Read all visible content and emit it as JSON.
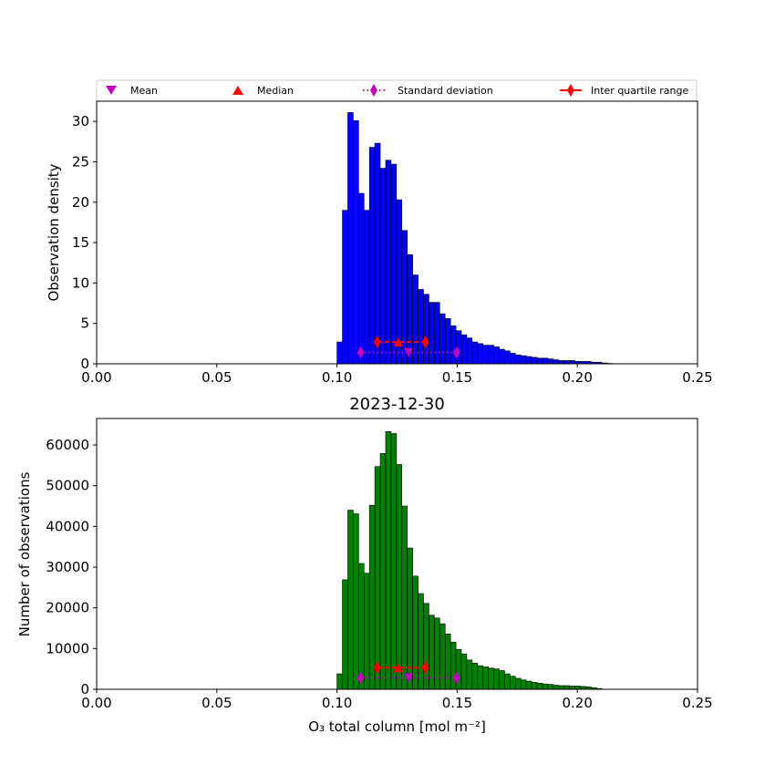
{
  "figure": {
    "legend": {
      "placement": "above-top-panel",
      "entries": [
        {
          "label": "Mean",
          "marker": "triangle-down",
          "color": "#bf00bf",
          "line": "none"
        },
        {
          "label": "Median",
          "marker": "triangle-up",
          "color": "#ff0000",
          "line": "none"
        },
        {
          "label": "Standard deviation",
          "marker": "diamond",
          "color": "#bf00bf",
          "line": "dotted"
        },
        {
          "label": "Inter quartile range",
          "marker": "diamond",
          "color": "#ff0000",
          "line": "solid"
        }
      ]
    }
  },
  "chart_data": [
    {
      "type": "bar",
      "panel": "top",
      "title": "",
      "xlabel": "",
      "ylabel": "Observation density",
      "bar_color": "#0000ff",
      "edge_color": "#000000",
      "xlim": [
        0.0,
        0.25
      ],
      "ylim": [
        0,
        32.5
      ],
      "xticks": [
        "0.00",
        "0.05",
        "0.10",
        "0.15",
        "0.20",
        "0.25"
      ],
      "yticks": [
        "0",
        "5",
        "10",
        "15",
        "20",
        "25",
        "30"
      ],
      "ytick_values": [
        0,
        5,
        10,
        15,
        20,
        25,
        30
      ],
      "bin_start": 0.1,
      "bin_width": 0.00225,
      "values": [
        2.7,
        19.0,
        31.1,
        30.1,
        21.1,
        19.0,
        26.8,
        27.3,
        24.2,
        25.2,
        24.7,
        20.3,
        16.5,
        13.5,
        11.0,
        9.2,
        8.6,
        7.6,
        7.6,
        6.2,
        5.6,
        4.7,
        4.1,
        3.6,
        3.2,
        2.7,
        2.5,
        2.3,
        2.3,
        2.1,
        1.8,
        1.6,
        1.3,
        1.1,
        1.0,
        0.9,
        0.8,
        0.7,
        0.7,
        0.6,
        0.5,
        0.4,
        0.4,
        0.4,
        0.3,
        0.3,
        0.3,
        0.2,
        0.2,
        0.1,
        0.05
      ],
      "statistics": {
        "mean": {
          "x": 0.1298,
          "y": 1.4
        },
        "median": {
          "x": 0.1255,
          "y": 2.7
        },
        "standard_deviation": {
          "x_range": [
            0.1098,
            0.1498
          ],
          "y": 1.4
        },
        "inter_quartile_range": {
          "x_range": [
            0.1168,
            0.1368
          ],
          "y": 2.7
        }
      }
    },
    {
      "type": "bar",
      "panel": "bottom",
      "title": "2023-12-30",
      "xlabel": "O₃ total column [mol m⁻²]",
      "ylabel": "Number of observations",
      "bar_color": "#008000",
      "edge_color": "#000000",
      "xlim": [
        0.0,
        0.25
      ],
      "ylim": [
        0,
        66500
      ],
      "xticks": [
        "0.00",
        "0.05",
        "0.10",
        "0.15",
        "0.20",
        "0.25"
      ],
      "yticks": [
        "0",
        "10000",
        "20000",
        "30000",
        "40000",
        "50000",
        "60000"
      ],
      "ytick_values": [
        0,
        10000,
        20000,
        30000,
        40000,
        50000,
        60000
      ],
      "bin_start": 0.1,
      "bin_width": 0.00225,
      "values": [
        3800,
        26900,
        44000,
        43100,
        30900,
        28500,
        45200,
        54700,
        57900,
        63300,
        62800,
        55200,
        45000,
        34700,
        27800,
        23500,
        21100,
        18200,
        17500,
        16100,
        13600,
        11600,
        9800,
        8700,
        7200,
        6400,
        5800,
        5500,
        5200,
        5000,
        4600,
        3800,
        3200,
        2700,
        2300,
        2000,
        1700,
        1500,
        1300,
        1200,
        1000,
        900,
        900,
        800,
        800,
        700,
        600,
        400,
        200
      ],
      "statistics": {
        "mean": {
          "x": 0.1298,
          "y": 2800
        },
        "median": {
          "x": 0.1255,
          "y": 5300
        },
        "standard_deviation": {
          "x_range": [
            0.1098,
            0.1498
          ],
          "y": 2800
        },
        "inter_quartile_range": {
          "x_range": [
            0.1168,
            0.1368
          ],
          "y": 5300
        }
      }
    }
  ]
}
